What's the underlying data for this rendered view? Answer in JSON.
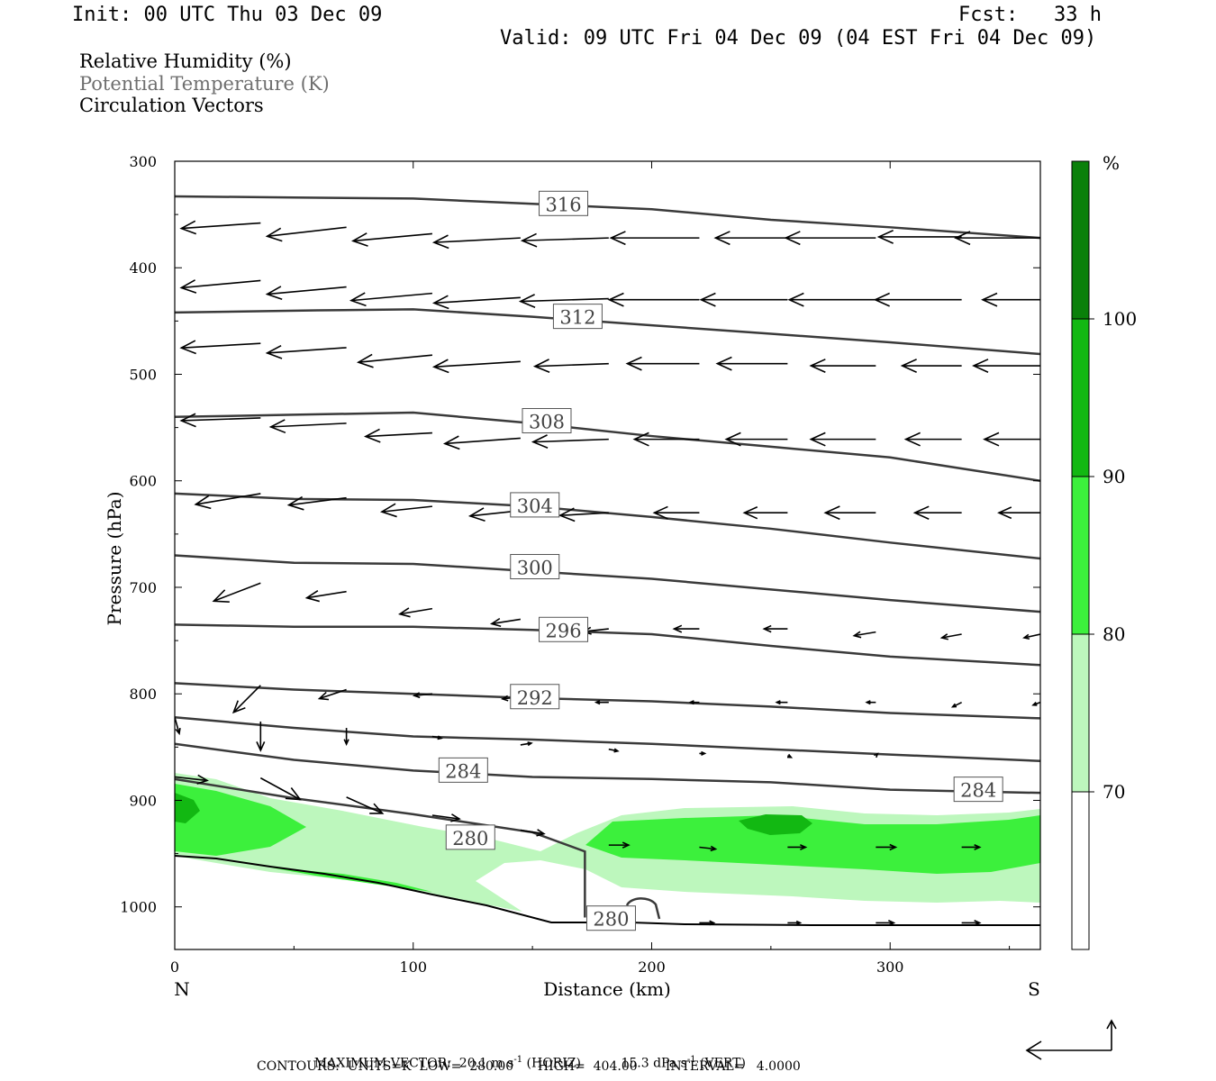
{
  "header": {
    "init": "Init: 00 UTC Thu 03 Dec 09",
    "fcst": "Fcst:   33 h",
    "valid": "Valid: 09 UTC Fri 04 Dec 09 (04 EST Fri 04 Dec 09)"
  },
  "legend": {
    "line1": "Relative Humidity (%)",
    "line2": "Potential Temperature (K)",
    "line3": "Circulation Vectors"
  },
  "axes": {
    "ylabel": "Pressure (hPa)",
    "xlabel": "Distance (km)",
    "x_left_end": "N",
    "x_right_end": "S",
    "yticks": [
      300,
      400,
      500,
      600,
      700,
      800,
      900,
      1000
    ],
    "xticks": [
      0,
      100,
      200,
      300
    ],
    "xlim": [
      0,
      363
    ],
    "ylim": [
      300,
      1040
    ]
  },
  "colorbar": {
    "unit": "%",
    "labels": [
      "100",
      "90",
      "80",
      "70"
    ],
    "bands": [
      {
        "from": 100,
        "to": 110,
        "color": "#0a800a"
      },
      {
        "from": 90,
        "to": 100,
        "color": "#12b812"
      },
      {
        "from": 80,
        "to": 90,
        "color": "#3cf03c"
      },
      {
        "from": 70,
        "to": 80,
        "color": "#bdf7bd"
      },
      {
        "from": 60,
        "to": 70,
        "color": "#ffffff"
      }
    ]
  },
  "footer": {
    "vector_label": "MAXIMUM VECTOR:  20.1 m s",
    "vector_horiz": "(HORIZ)",
    "vector_vert_value": "15.3 dPa s",
    "vector_vert": "(VERT)",
    "exponent": "-1",
    "contours": "CONTOURS:  UNITS=K  LOW=  280.00      HIGH=  404.00       INTERVAL=   4.0000"
  },
  "chart_data": {
    "type": "cross-section",
    "x_units": "km",
    "y_units": "hPa",
    "theta_contours": [
      {
        "level": 316,
        "label": "316",
        "points": [
          [
            0,
            333
          ],
          [
            50,
            334
          ],
          [
            100,
            335
          ],
          [
            150,
            340
          ],
          [
            200,
            345
          ],
          [
            250,
            355
          ],
          [
            300,
            362
          ],
          [
            363,
            372
          ]
        ]
      },
      {
        "level": 312,
        "label": "312",
        "points": [
          [
            0,
            442
          ],
          [
            60,
            440
          ],
          [
            100,
            439
          ],
          [
            150,
            446
          ],
          [
            200,
            454
          ],
          [
            250,
            462
          ],
          [
            300,
            470
          ],
          [
            363,
            481
          ]
        ]
      },
      {
        "level": 308,
        "label": "308",
        "points": [
          [
            0,
            540
          ],
          [
            50,
            538
          ],
          [
            100,
            536
          ],
          [
            150,
            546
          ],
          [
            200,
            558
          ],
          [
            250,
            568
          ],
          [
            300,
            578
          ],
          [
            363,
            600
          ]
        ]
      },
      {
        "level": 304,
        "label": "304",
        "points": [
          [
            0,
            612
          ],
          [
            50,
            617
          ],
          [
            100,
            618
          ],
          [
            150,
            624
          ],
          [
            200,
            634
          ],
          [
            250,
            645
          ],
          [
            300,
            658
          ],
          [
            363,
            673
          ]
        ]
      },
      {
        "level": 300,
        "label": "300",
        "points": [
          [
            0,
            670
          ],
          [
            50,
            677
          ],
          [
            100,
            678
          ],
          [
            150,
            685
          ],
          [
            200,
            692
          ],
          [
            250,
            702
          ],
          [
            300,
            712
          ],
          [
            363,
            723
          ]
        ]
      },
      {
        "level": 296,
        "label": "296",
        "points": [
          [
            0,
            735
          ],
          [
            50,
            737
          ],
          [
            100,
            737
          ],
          [
            150,
            740
          ],
          [
            200,
            744
          ],
          [
            250,
            755
          ],
          [
            300,
            765
          ],
          [
            363,
            773
          ]
        ]
      },
      {
        "level": 292,
        "label": "292",
        "points": [
          [
            0,
            790
          ],
          [
            50,
            796
          ],
          [
            100,
            800
          ],
          [
            150,
            804
          ],
          [
            200,
            807
          ],
          [
            250,
            812
          ],
          [
            300,
            818
          ],
          [
            363,
            823
          ]
        ]
      },
      {
        "level": 288,
        "label": "",
        "points": [
          [
            0,
            822
          ],
          [
            50,
            832
          ],
          [
            100,
            840
          ],
          [
            150,
            843
          ],
          [
            200,
            847
          ],
          [
            250,
            852
          ],
          [
            300,
            857
          ],
          [
            363,
            863
          ]
        ]
      },
      {
        "level": 284,
        "label": "284",
        "points": [
          [
            0,
            847
          ],
          [
            50,
            862
          ],
          [
            100,
            872
          ],
          [
            150,
            878
          ],
          [
            200,
            880
          ],
          [
            250,
            883
          ],
          [
            300,
            890
          ],
          [
            363,
            893
          ]
        ]
      },
      {
        "level": 280,
        "label": "280",
        "points": [
          [
            0,
            880
          ],
          [
            50,
            898
          ],
          [
            100,
            913
          ],
          [
            150,
            930
          ],
          [
            172,
            948
          ],
          [
            172,
            1010
          ]
        ]
      }
    ],
    "rh_regions": [
      {
        "level": 70,
        "note": "moist low-level layer north of 170 km and 900-990 hPa south"
      },
      {
        "level": 80,
        "note": "core 910-965 hPa"
      },
      {
        "level": 90,
        "note": "small core near 250 km, 925 hPa"
      }
    ],
    "max_vector_horiz": 20.1,
    "max_vector_vert": 15.3
  }
}
